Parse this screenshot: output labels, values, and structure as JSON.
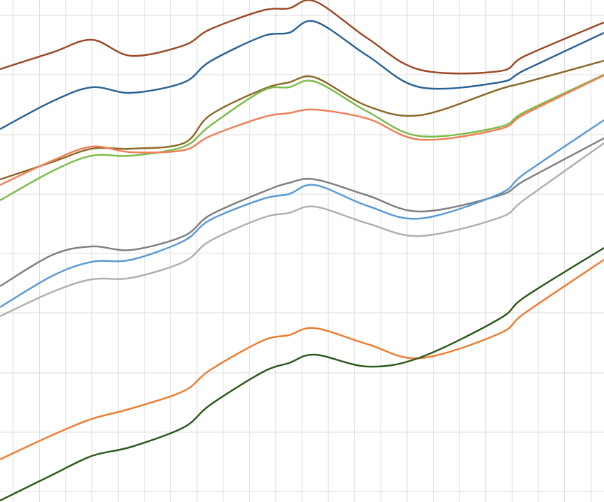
{
  "chart_data": {
    "type": "line",
    "x": [
      0,
      2,
      3.5,
      5,
      7,
      8,
      10,
      11,
      12,
      14,
      16,
      19,
      20,
      23
    ],
    "xlim": [
      0,
      23
    ],
    "xticks": [
      0.5,
      1.5,
      2.5,
      3.5,
      4.5,
      5.5,
      6.5,
      7.5,
      8.5,
      9.5,
      10.5,
      11.5,
      12.5,
      13.5,
      14.5,
      15.5,
      16.5,
      17.5,
      18.5,
      19.5,
      20.5,
      21.5,
      22.5
    ],
    "ylim": [
      0,
      719
    ],
    "yticks": [
      15,
      100,
      185,
      271,
      356,
      441,
      526,
      612,
      697
    ],
    "grid": true,
    "series": [
      {
        "color": "#9c4a26",
        "values": [
          620,
          644,
          662,
          639,
          654,
          677,
          704,
          707,
          717,
          664,
          619,
          617,
          639,
          687
        ]
      },
      {
        "color": "#2a6496",
        "values": [
          534,
          574,
          594,
          586,
          601,
          631,
          667,
          672,
          688,
          639,
          594,
          601,
          619,
          672
        ]
      },
      {
        "color": "#8b6a2a",
        "values": [
          462,
          487,
          506,
          506,
          514,
          554,
          591,
          601,
          608,
          567,
          554,
          591,
          601,
          632
        ]
      },
      {
        "color": "#7cbd4a",
        "values": [
          432,
          474,
          496,
          496,
          509,
          539,
          589,
          594,
          602,
          559,
          524,
          537,
          559,
          612
        ]
      },
      {
        "color": "#f08058",
        "values": [
          454,
          489,
          509,
          501,
          504,
          524,
          551,
          557,
          562,
          549,
          519,
          534,
          556,
          611
        ]
      },
      {
        "color": "#808080",
        "values": [
          309,
          354,
          366,
          361,
          381,
          411,
          444,
          457,
          462,
          439,
          416,
          439,
          461,
          521
        ]
      },
      {
        "color": "#5b9bd5",
        "values": [
          279,
          324,
          344,
          347,
          374,
          404,
          434,
          441,
          454,
          424,
          406,
          441,
          471,
          547
        ]
      },
      {
        "color": "#b0b0b0",
        "values": [
          266,
          301,
          319,
          321,
          344,
          374,
          407,
          414,
          423,
          399,
          381,
          407,
          434,
          514
        ]
      },
      {
        "color": "#ed7d31",
        "values": [
          61,
          96,
          119,
          134,
          159,
          189,
          231,
          239,
          249,
          226,
          206,
          241,
          271,
          347
        ]
      },
      {
        "color": "#2f5a1e",
        "values": [
          2,
          39,
          66,
          79,
          107,
          139,
          186,
          199,
          211,
          194,
          207,
          262,
          294,
          364
        ]
      }
    ]
  }
}
